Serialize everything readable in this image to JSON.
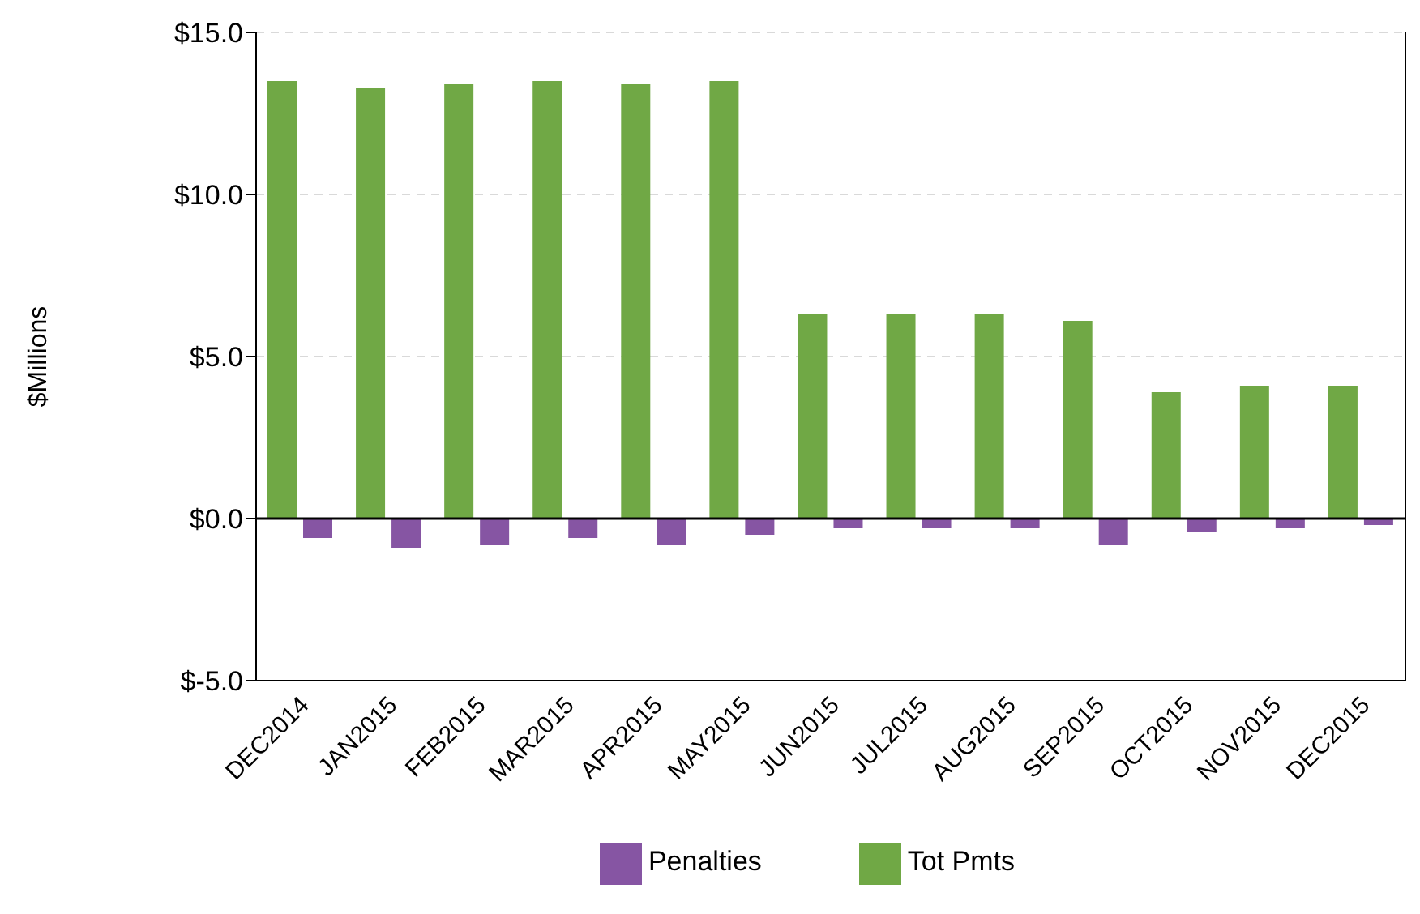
{
  "chart_data": {
    "type": "bar",
    "ylabel": "$Millions",
    "categories": [
      "DEC2014",
      "JAN2015",
      "FEB2015",
      "MAR2015",
      "APR2015",
      "MAY2015",
      "JUN2015",
      "JUL2015",
      "AUG2015",
      "SEP2015",
      "OCT2015",
      "NOV2015",
      "DEC2015"
    ],
    "series": [
      {
        "name": "Tot Pmts",
        "color": "#70a845",
        "values": [
          13.5,
          13.3,
          13.4,
          13.5,
          13.4,
          13.5,
          6.3,
          6.3,
          6.3,
          6.1,
          3.9,
          4.1,
          4.1
        ]
      },
      {
        "name": "Penalties",
        "color": "#8655a3",
        "values": [
          -0.6,
          -0.9,
          -0.8,
          -0.6,
          -0.8,
          -0.5,
          -0.3,
          -0.3,
          -0.3,
          -0.8,
          -0.4,
          -0.3,
          -0.2
        ]
      }
    ],
    "ylim": [
      -5,
      15
    ],
    "yticks": [
      {
        "value": -5,
        "label": "$-5.0"
      },
      {
        "value": 0,
        "label": "$0.0"
      },
      {
        "value": 5,
        "label": "$5.0"
      },
      {
        "value": 10,
        "label": "$10.0"
      },
      {
        "value": 15,
        "label": "$15.0"
      }
    ],
    "ref_lines": [
      {
        "axis": "y",
        "value": 0,
        "color": "#000000"
      }
    ],
    "grid": "y",
    "legend": "bottom"
  }
}
